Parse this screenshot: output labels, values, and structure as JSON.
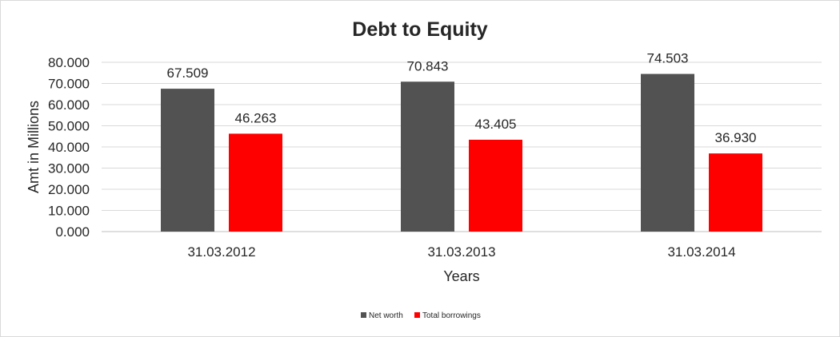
{
  "chart_data": {
    "type": "bar",
    "title": "Debt to Equity",
    "xlabel": "Years",
    "ylabel": "Amt in Millions",
    "categories": [
      "31.03.2012",
      "31.03.2013",
      "31.03.2014"
    ],
    "series": [
      {
        "name": "Net worth",
        "values": [
          67.509,
          70.843,
          74.503
        ],
        "labels": [
          "67.509",
          "70.843",
          "74.503"
        ],
        "color": "#525252"
      },
      {
        "name": "Total borrowings",
        "values": [
          46.263,
          43.405,
          36.93
        ],
        "labels": [
          "46.263",
          "43.405",
          "36.930"
        ],
        "color": "#ff0000"
      }
    ],
    "ylim": [
      0,
      80
    ],
    "yticks": [
      "0.000",
      "10.000",
      "20.000",
      "30.000",
      "40.000",
      "50.000",
      "60.000",
      "70.000",
      "80.000"
    ],
    "grid": true,
    "legend_position": "bottom"
  }
}
